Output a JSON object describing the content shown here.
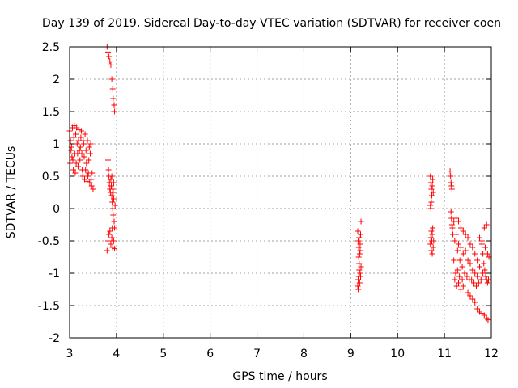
{
  "chart_data": {
    "type": "scatter",
    "title": "Day 139 of 2019, Sidereal Day-to-day VTEC variation (SDTVAR) for receiver coen",
    "xlabel": "GPS time / hours",
    "ylabel": "SDTVAR / TECUs",
    "xlim": [
      3,
      12
    ],
    "ylim": [
      -2,
      2.5
    ],
    "xticks": [
      3,
      4,
      5,
      6,
      7,
      8,
      9,
      10,
      11,
      12
    ],
    "xtick_labels": [
      "3",
      "4",
      "5",
      "6",
      "7",
      "8",
      "9",
      "10",
      "11",
      "12"
    ],
    "yticks": [
      -2,
      -1.5,
      -1,
      -0.5,
      0,
      0.5,
      1,
      1.5,
      2,
      2.5
    ],
    "ytick_labels": [
      "-2",
      "-1.5",
      "-1",
      "-0.5",
      "0",
      "0.5",
      "1",
      "1.5",
      "2",
      "2.5"
    ],
    "grid": true,
    "marker": "+",
    "color": "#ff0000",
    "series": [
      {
        "name": "SDTVAR",
        "points": [
          [
            3.0,
            1.2
          ],
          [
            3.02,
            1.05
          ],
          [
            3.03,
            0.9
          ],
          [
            3.05,
            0.8
          ],
          [
            3.06,
            1.25
          ],
          [
            3.08,
            0.6
          ],
          [
            3.1,
            1.28
          ],
          [
            3.12,
            0.55
          ],
          [
            3.14,
            0.7
          ],
          [
            3.15,
            1.25
          ],
          [
            3.17,
            0.85
          ],
          [
            3.18,
            0.65
          ],
          [
            3.2,
            1.22
          ],
          [
            3.22,
            0.75
          ],
          [
            3.23,
            0.95
          ],
          [
            3.25,
            1.2
          ],
          [
            3.27,
            0.6
          ],
          [
            3.28,
            0.5
          ],
          [
            3.3,
            1.0
          ],
          [
            3.32,
            0.45
          ],
          [
            3.33,
            1.15
          ],
          [
            3.35,
            0.9
          ],
          [
            3.37,
            0.42
          ],
          [
            3.38,
            1.05
          ],
          [
            3.4,
            0.55
          ],
          [
            3.42,
            0.95
          ],
          [
            3.43,
            0.4
          ],
          [
            3.45,
            1.0
          ],
          [
            3.47,
            0.35
          ],
          [
            3.48,
            0.55
          ],
          [
            3.04,
            0.95
          ],
          [
            3.07,
            0.75
          ],
          [
            3.11,
            0.85
          ],
          [
            3.16,
            1.0
          ],
          [
            3.21,
            0.9
          ],
          [
            3.26,
            0.85
          ],
          [
            3.31,
            0.8
          ],
          [
            3.36,
            0.7
          ],
          [
            3.41,
            0.75
          ],
          [
            3.44,
            0.85
          ],
          [
            3.01,
            0.7
          ],
          [
            3.09,
            1.1
          ],
          [
            3.13,
            1.15
          ],
          [
            3.19,
            1.05
          ],
          [
            3.24,
            1.1
          ],
          [
            3.29,
            1.05
          ],
          [
            3.34,
            0.6
          ],
          [
            3.39,
            0.5
          ],
          [
            3.46,
            0.45
          ],
          [
            3.5,
            0.3
          ],
          [
            3.8,
            2.5
          ],
          [
            3.82,
            2.42
          ],
          [
            3.84,
            2.35
          ],
          [
            3.86,
            2.28
          ],
          [
            3.88,
            2.22
          ],
          [
            3.9,
            2.0
          ],
          [
            3.92,
            1.85
          ],
          [
            3.93,
            1.7
          ],
          [
            3.95,
            1.6
          ],
          [
            3.96,
            1.5
          ],
          [
            3.82,
            0.75
          ],
          [
            3.83,
            0.6
          ],
          [
            3.84,
            0.5
          ],
          [
            3.85,
            0.4
          ],
          [
            3.86,
            0.3
          ],
          [
            3.87,
            0.25
          ],
          [
            3.88,
            0.45
          ],
          [
            3.89,
            0.35
          ],
          [
            3.9,
            0.2
          ],
          [
            3.91,
            0.1
          ],
          [
            3.92,
            0.0
          ],
          [
            3.93,
            -0.1
          ],
          [
            3.94,
            0.15
          ],
          [
            3.95,
            -0.2
          ],
          [
            3.96,
            -0.3
          ],
          [
            3.97,
            0.05
          ],
          [
            3.92,
            0.3
          ],
          [
            3.94,
            0.4
          ],
          [
            3.9,
            0.5
          ],
          [
            3.93,
            0.25
          ],
          [
            3.8,
            -0.65
          ],
          [
            3.82,
            -0.5
          ],
          [
            3.84,
            -0.4
          ],
          [
            3.86,
            -0.35
          ],
          [
            3.88,
            -0.55
          ],
          [
            3.9,
            -0.45
          ],
          [
            3.92,
            -0.6
          ],
          [
            3.94,
            -0.5
          ],
          [
            3.96,
            -0.62
          ],
          [
            3.91,
            -0.3
          ],
          [
            9.15,
            -0.35
          ],
          [
            9.16,
            -0.5
          ],
          [
            9.17,
            -0.6
          ],
          [
            9.18,
            -0.45
          ],
          [
            9.19,
            -0.7
          ],
          [
            9.2,
            -0.55
          ],
          [
            9.21,
            -0.4
          ],
          [
            9.22,
            -0.2
          ],
          [
            9.2,
            -0.65
          ],
          [
            9.17,
            -0.75
          ],
          [
            9.15,
            -1.2
          ],
          [
            9.16,
            -1.1
          ],
          [
            9.17,
            -1.05
          ],
          [
            9.18,
            -0.95
          ],
          [
            9.19,
            -1.15
          ],
          [
            9.2,
            -1.0
          ],
          [
            9.21,
            -1.05
          ],
          [
            9.22,
            -0.9
          ],
          [
            9.18,
            -0.85
          ],
          [
            9.16,
            -1.25
          ],
          [
            10.7,
            0.5
          ],
          [
            10.71,
            0.4
          ],
          [
            10.72,
            0.3
          ],
          [
            10.73,
            0.2
          ],
          [
            10.74,
            0.35
          ],
          [
            10.75,
            0.45
          ],
          [
            10.76,
            0.25
          ],
          [
            10.72,
            0.1
          ],
          [
            10.71,
            0.0
          ],
          [
            10.7,
            0.05
          ],
          [
            10.7,
            -0.55
          ],
          [
            10.71,
            -0.45
          ],
          [
            10.72,
            -0.65
          ],
          [
            10.73,
            -0.5
          ],
          [
            10.74,
            -0.4
          ],
          [
            10.75,
            -0.3
          ],
          [
            10.76,
            -0.6
          ],
          [
            10.77,
            -0.5
          ],
          [
            10.74,
            -0.7
          ],
          [
            10.72,
            -0.35
          ],
          [
            11.12,
            0.58
          ],
          [
            11.13,
            0.5
          ],
          [
            11.14,
            0.4
          ],
          [
            11.15,
            0.35
          ],
          [
            11.16,
            0.3
          ],
          [
            11.14,
            -0.05
          ],
          [
            11.15,
            -0.15
          ],
          [
            11.16,
            -0.25
          ],
          [
            11.17,
            -0.3
          ],
          [
            11.18,
            -0.4
          ],
          [
            11.2,
            -0.2
          ],
          [
            11.22,
            -0.5
          ],
          [
            11.25,
            -0.15
          ],
          [
            11.28,
            -0.65
          ],
          [
            11.3,
            -0.2
          ],
          [
            11.33,
            -0.8
          ],
          [
            11.35,
            -0.3
          ],
          [
            11.38,
            -0.9
          ],
          [
            11.4,
            -0.35
          ],
          [
            11.43,
            -1.0
          ],
          [
            11.45,
            -0.4
          ],
          [
            11.48,
            -1.05
          ],
          [
            11.5,
            -0.45
          ],
          [
            11.53,
            -1.1
          ],
          [
            11.55,
            -0.55
          ],
          [
            11.58,
            -1.1
          ],
          [
            11.6,
            -0.6
          ],
          [
            11.63,
            -1.15
          ],
          [
            11.65,
            -0.7
          ],
          [
            11.68,
            -1.2
          ],
          [
            11.7,
            -0.8
          ],
          [
            11.73,
            -1.15
          ],
          [
            11.75,
            -0.9
          ],
          [
            11.78,
            -1.1
          ],
          [
            11.8,
            -0.5
          ],
          [
            11.82,
            -1.0
          ],
          [
            11.85,
            -0.3
          ],
          [
            11.87,
            -0.6
          ],
          [
            11.9,
            -0.25
          ],
          [
            11.92,
            -0.7
          ],
          [
            11.2,
            -0.8
          ],
          [
            11.22,
            -1.1
          ],
          [
            11.24,
            -1.0
          ],
          [
            11.26,
            -1.2
          ],
          [
            11.28,
            -0.95
          ],
          [
            11.3,
            -1.15
          ],
          [
            11.32,
            -1.05
          ],
          [
            11.35,
            -1.25
          ],
          [
            11.38,
            -1.1
          ],
          [
            11.4,
            -1.2
          ],
          [
            11.5,
            -1.3
          ],
          [
            11.55,
            -1.35
          ],
          [
            11.6,
            -1.4
          ],
          [
            11.65,
            -1.45
          ],
          [
            11.7,
            -1.55
          ],
          [
            11.75,
            -1.6
          ],
          [
            11.8,
            -1.62
          ],
          [
            11.85,
            -1.65
          ],
          [
            11.9,
            -1.7
          ],
          [
            11.93,
            -1.72
          ],
          [
            11.25,
            -0.4
          ],
          [
            11.3,
            -0.55
          ],
          [
            11.35,
            -0.6
          ],
          [
            11.4,
            -0.7
          ],
          [
            11.45,
            -0.65
          ],
          [
            11.5,
            -0.8
          ],
          [
            11.55,
            -0.85
          ],
          [
            11.6,
            -0.95
          ],
          [
            11.65,
            -1.0
          ],
          [
            11.7,
            -1.05
          ],
          [
            11.75,
            -0.45
          ],
          [
            11.8,
            -0.55
          ],
          [
            11.82,
            -0.7
          ],
          [
            11.84,
            -0.85
          ],
          [
            11.86,
            -0.95
          ],
          [
            11.88,
            -1.05
          ],
          [
            11.9,
            -1.1
          ],
          [
            11.92,
            -1.15
          ],
          [
            11.94,
            -1.1
          ],
          [
            11.95,
            -0.75
          ]
        ]
      }
    ]
  }
}
